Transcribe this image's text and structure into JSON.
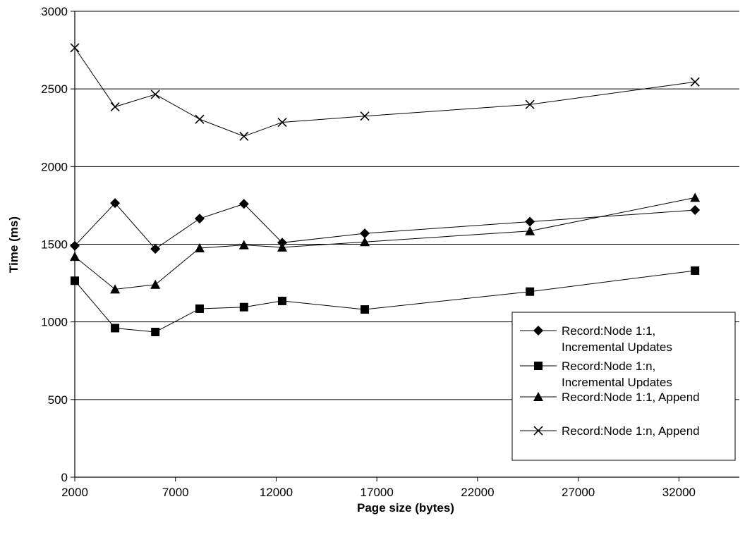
{
  "chart_data": {
    "type": "line",
    "title": "",
    "xlabel": "Page size (bytes)",
    "ylabel": "Time (ms)",
    "xlim": [
      2000,
      35000
    ],
    "ylim": [
      0,
      3000
    ],
    "xticks": [
      2000,
      7000,
      12000,
      17000,
      22000,
      27000,
      32000
    ],
    "yticks": [
      0,
      500,
      1000,
      1500,
      2000,
      2500,
      3000
    ],
    "grid": "horizontal",
    "legend_position": "right",
    "series": [
      {
        "name": "Record:Node 1:1, Incremental Updates",
        "legend_lines": [
          "Record:Node 1:1,",
          "Incremental Updates"
        ],
        "marker": "diamond",
        "x": [
          2000,
          4000,
          6000,
          8200,
          10400,
          12300,
          16400,
          24600,
          32800
        ],
        "y": [
          1490,
          1765,
          1470,
          1665,
          1760,
          1510,
          1570,
          1645,
          1720
        ]
      },
      {
        "name": "Record:Node 1:n, Incremental Updates",
        "legend_lines": [
          "Record:Node 1:n,",
          "Incremental Updates"
        ],
        "marker": "square",
        "x": [
          2000,
          4000,
          6000,
          8200,
          10400,
          12300,
          16400,
          24600,
          32800
        ],
        "y": [
          1265,
          960,
          935,
          1085,
          1095,
          1135,
          1080,
          1195,
          1330
        ]
      },
      {
        "name": "Record:Node 1:1, Append",
        "legend_lines": [
          "Record:Node 1:1, Append"
        ],
        "marker": "triangle",
        "x": [
          2000,
          4000,
          6000,
          8200,
          10400,
          12300,
          16400,
          24600,
          32800
        ],
        "y": [
          1420,
          1210,
          1240,
          1475,
          1495,
          1480,
          1515,
          1585,
          1800
        ]
      },
      {
        "name": "Record:Node 1:n, Append",
        "legend_lines": [
          "Record:Node 1:n, Append"
        ],
        "marker": "x",
        "x": [
          2000,
          4000,
          6000,
          8200,
          10400,
          12300,
          16400,
          24600,
          32800
        ],
        "y": [
          2765,
          2385,
          2465,
          2305,
          2195,
          2285,
          2325,
          2400,
          2545
        ]
      }
    ]
  }
}
